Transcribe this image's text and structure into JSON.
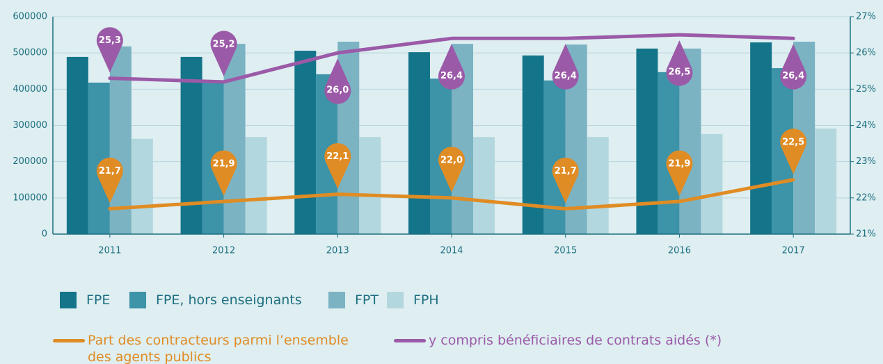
{
  "chart_data": {
    "type": "bar",
    "categories": [
      "2011",
      "2012",
      "2013",
      "2014",
      "2015",
      "2016",
      "2017"
    ],
    "series": [
      {
        "name": "FPE",
        "color": "#14758a",
        "values": [
          489000,
          489000,
          506000,
          502000,
          493000,
          512000,
          529000
        ]
      },
      {
        "name": "FPE, hors enseignants",
        "color": "#3d93a8",
        "values": [
          418000,
          418000,
          441000,
          429000,
          424000,
          447000,
          458000
        ]
      },
      {
        "name": "FPT",
        "color": "#7bb3c3",
        "values": [
          518000,
          525000,
          531000,
          525000,
          523000,
          512000,
          531000
        ]
      },
      {
        "name": "FPH",
        "color": "#b3d7de",
        "values": [
          263000,
          268000,
          268000,
          268000,
          268000,
          276000,
          291000
        ]
      }
    ],
    "lines": [
      {
        "type": "line",
        "axis": "y2",
        "name": "Part des contracteurs parmi l’ensemble des agents publics",
        "color": "#e08c24",
        "values": [
          21.7,
          21.9,
          22.1,
          22.0,
          21.7,
          21.9,
          22.5
        ],
        "value_labels": [
          "21,7",
          "21,9",
          "22,1",
          "22,0",
          "21,7",
          "21,9",
          "22,5"
        ]
      },
      {
        "type": "line",
        "axis": "y2",
        "name": "y compris bénéficiaires de contrats aidés (*)",
        "color": "#9b5aa8",
        "values": [
          25.3,
          25.2,
          26.0,
          26.4,
          26.4,
          26.5,
          26.4
        ],
        "value_labels": [
          "25,3",
          "25,2",
          "26,0",
          "26,4",
          "26,4",
          "26,5",
          "26,4"
        ]
      }
    ],
    "ylim": [
      0,
      600000
    ],
    "yticks": [
      0,
      100000,
      200000,
      300000,
      400000,
      500000,
      600000
    ],
    "y2lim": [
      21,
      27
    ],
    "y2ticks": [
      {
        "value": 21,
        "label": "21%"
      },
      {
        "value": 22,
        "label": "22%"
      },
      {
        "value": 23,
        "label": "23%"
      },
      {
        "value": 24,
        "label": "24%"
      },
      {
        "value": 25,
        "label": "25%"
      },
      {
        "value": 26,
        "label": "26%"
      },
      {
        "value": 27,
        "label": "27%"
      }
    ],
    "grid": true
  }
}
